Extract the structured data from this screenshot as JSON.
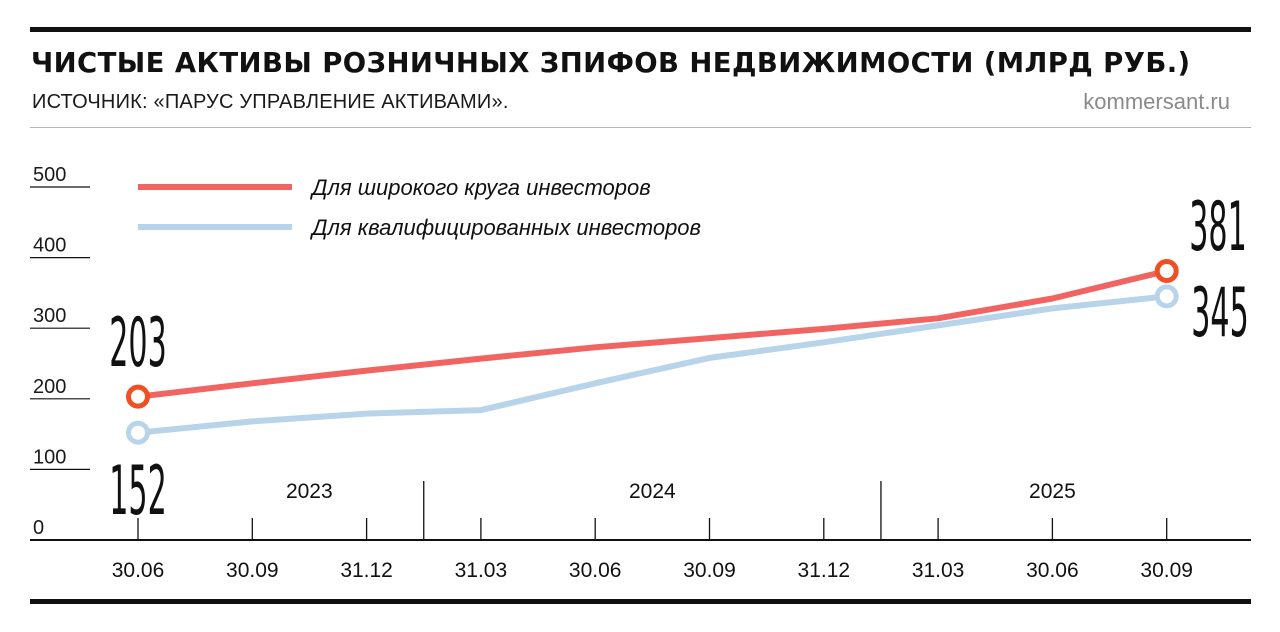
{
  "header": {
    "title": "ЧИСТЫЕ АКТИВЫ РОЗНИЧНЫХ ЗПИФОВ НЕДВИЖИМОСТИ (МЛРД РУБ.)",
    "source": "ИСТОЧНИК: «ПАРУС УПРАВЛЕНИЕ АКТИВАМИ».",
    "site": "kommersant.ru"
  },
  "chart_data": {
    "type": "line",
    "title": "ЧИСТЫЕ АКТИВЫ РОЗНИЧНЫХ ЗПИФОВ НЕДВИЖИМОСТИ (МЛРД РУБ.)",
    "xlabel": "",
    "ylabel": "",
    "categories": [
      "30.06",
      "30.09",
      "31.12",
      "31.03",
      "30.06",
      "30.09",
      "31.12",
      "31.03",
      "30.06",
      "30.09"
    ],
    "years": [
      {
        "label": "2023",
        "from": 0,
        "to": 2
      },
      {
        "label": "2024",
        "from": 3,
        "to": 6
      },
      {
        "label": "2025",
        "from": 7,
        "to": 9
      }
    ],
    "yticks": [
      0,
      100,
      200,
      300,
      400,
      500
    ],
    "ylim": [
      0,
      500
    ],
    "grid": false,
    "legend_position": "top-left",
    "series": [
      {
        "name": "Для широкого круга инвесторов",
        "color": "#f26461",
        "marker_color": "#f04e23",
        "values": [
          203,
          222,
          240,
          257,
          273,
          286,
          299,
          314,
          342,
          381
        ]
      },
      {
        "name": "Для квалифицированных инвесторов",
        "color": "#b7d4ea",
        "marker_color": "#b7d4ea",
        "values": [
          152,
          168,
          179,
          184,
          222,
          258,
          280,
          304,
          328,
          345
        ]
      }
    ],
    "value_labels": [
      {
        "series": 0,
        "index": 0,
        "text": "203"
      },
      {
        "series": 1,
        "index": 0,
        "text": "152"
      },
      {
        "series": 0,
        "index": 9,
        "text": "381"
      },
      {
        "series": 1,
        "index": 9,
        "text": "345"
      }
    ]
  }
}
